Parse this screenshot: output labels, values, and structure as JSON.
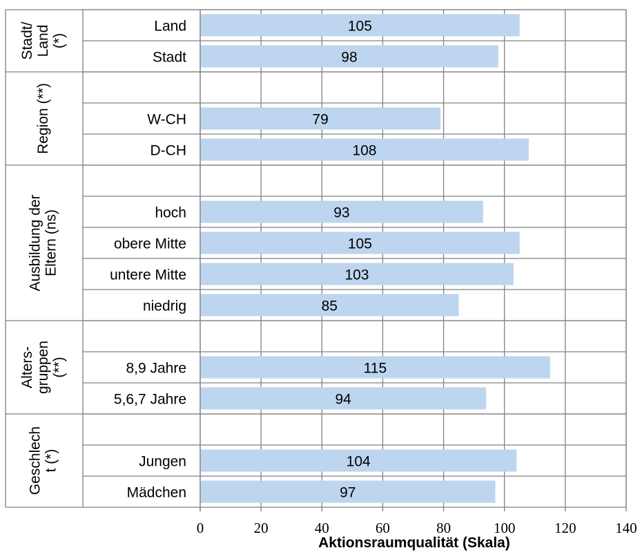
{
  "chart_data": {
    "type": "bar",
    "orientation": "horizontal",
    "xlabel": "Aktionsraumqualität (Skala)",
    "xlim": [
      0,
      140
    ],
    "xticks": [
      0,
      20,
      40,
      60,
      80,
      100,
      120,
      140
    ],
    "grid": true,
    "bar_color": "#BDD5EE",
    "groups": [
      {
        "label_lines": [
          "Stadt/",
          "Land",
          "(*)"
        ],
        "rows": [
          {
            "label": "Land",
            "value": 105
          },
          {
            "label": "Stadt",
            "value": 98
          }
        ]
      },
      {
        "label_lines": [
          "Region (**)"
        ],
        "rows": [
          {
            "label": "",
            "value": null
          },
          {
            "label": "W-CH",
            "value": 79
          },
          {
            "label": "D-CH",
            "value": 108
          }
        ]
      },
      {
        "label_lines": [
          "Ausbildung der",
          "Eltern (ns)"
        ],
        "rows": [
          {
            "label": "",
            "value": null
          },
          {
            "label": "hoch",
            "value": 93
          },
          {
            "label": "obere Mitte",
            "value": 105
          },
          {
            "label": "untere Mitte",
            "value": 103
          },
          {
            "label": "niedrig",
            "value": 85
          }
        ]
      },
      {
        "label_lines": [
          "Alters-",
          "gruppen",
          "(**)"
        ],
        "rows": [
          {
            "label": "",
            "value": null
          },
          {
            "label": "8,9 Jahre",
            "value": 115
          },
          {
            "label": "5,6,7 Jahre",
            "value": 94
          }
        ]
      },
      {
        "label_lines": [
          "Geschlech",
          "t (*)"
        ],
        "rows": [
          {
            "label": "",
            "value": null
          },
          {
            "label": "Jungen",
            "value": 104
          },
          {
            "label": "Mädchen",
            "value": 97
          }
        ]
      }
    ]
  }
}
